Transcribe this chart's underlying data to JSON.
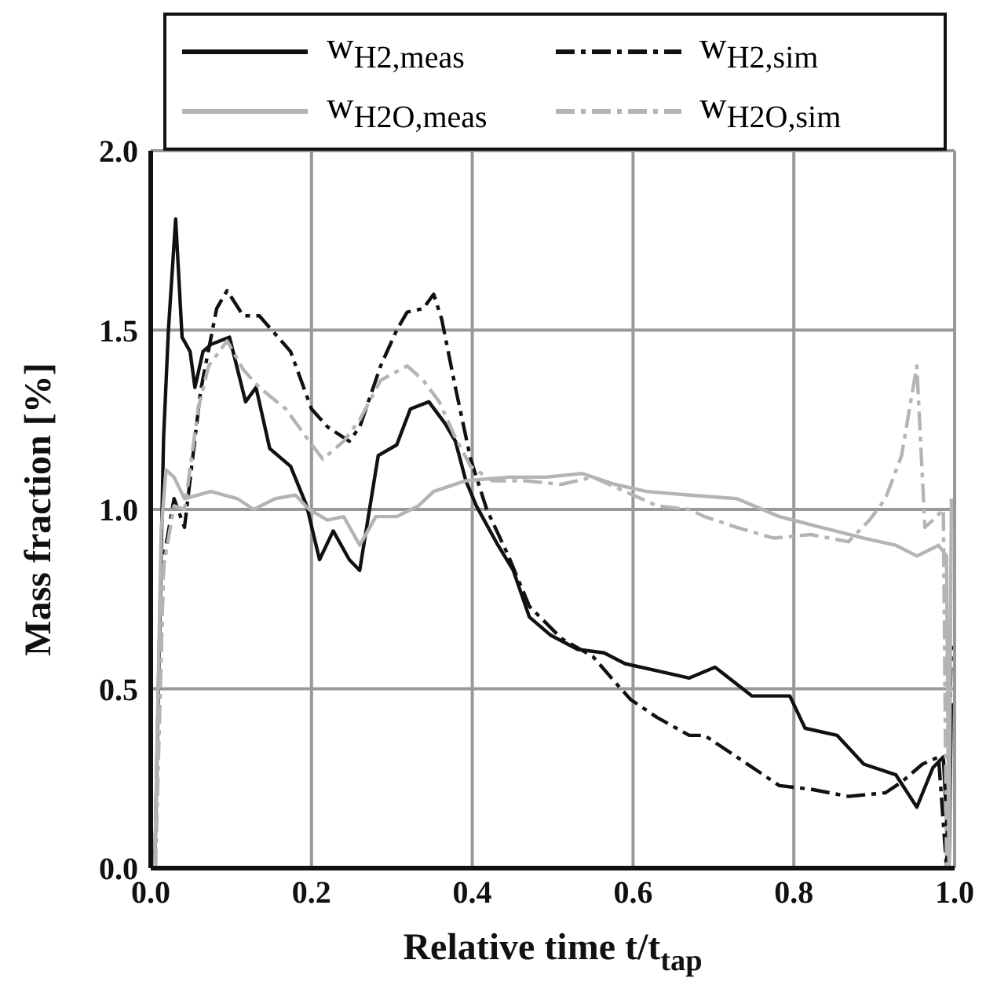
{
  "chart_data": {
    "type": "line",
    "xlabel": "Relative time t/t$_{tap}$",
    "ylabel": "Mass fraction [%]",
    "xlim": [
      0,
      1
    ],
    "ylim": [
      0,
      2
    ],
    "xticks": [
      {
        "value": 0,
        "label": "0.0"
      },
      0.2,
      0.4,
      0.6,
      0.8,
      {
        "value": 1,
        "label": "1.0"
      }
    ],
    "yticks": [
      {
        "value": 0,
        "label": "0.0"
      },
      0.5,
      {
        "value": 1,
        "label": "1.0"
      },
      1.5,
      {
        "value": 2,
        "label": "2.0"
      }
    ],
    "grid": true,
    "legend": "top",
    "marker": "none",
    "series": [
      {
        "name": "w$_{H2,meas}$",
        "color": "#111111",
        "line_style": "solid",
        "x": [
          0.005,
          0.016,
          0.022,
          0.031,
          0.039,
          0.049,
          0.055,
          0.065,
          0.075,
          0.098,
          0.118,
          0.131,
          0.148,
          0.174,
          0.194,
          0.21,
          0.227,
          0.247,
          0.26,
          0.27,
          0.283,
          0.306,
          0.323,
          0.346,
          0.366,
          0.379,
          0.392,
          0.405,
          0.432,
          0.451,
          0.471,
          0.497,
          0.531,
          0.564,
          0.59,
          0.63,
          0.67,
          0.702,
          0.748,
          0.795,
          0.814,
          0.854,
          0.887,
          0.927,
          0.953,
          0.973,
          0.986,
          0.993,
          0.996
        ],
        "values": [
          0,
          1.2,
          1.5,
          1.81,
          1.48,
          1.44,
          1.34,
          1.44,
          1.46,
          1.48,
          1.3,
          1.34,
          1.17,
          1.12,
          1.01,
          0.86,
          0.94,
          0.86,
          0.83,
          0.97,
          1.15,
          1.18,
          1.28,
          1.3,
          1.24,
          1.19,
          1.08,
          1.01,
          0.9,
          0.83,
          0.7,
          0.65,
          0.61,
          0.6,
          0.57,
          0.55,
          0.53,
          0.56,
          0.48,
          0.48,
          0.39,
          0.37,
          0.29,
          0.26,
          0.17,
          0.28,
          0.31,
          0,
          0.46
        ]
      },
      {
        "name": "w$_{H2,sim}$",
        "color": "#111111",
        "line_style": "dashdot",
        "x": [
          0.005,
          0.016,
          0.029,
          0.042,
          0.062,
          0.082,
          0.095,
          0.115,
          0.135,
          0.174,
          0.2,
          0.22,
          0.247,
          0.26,
          0.286,
          0.306,
          0.319,
          0.339,
          0.352,
          0.362,
          0.379,
          0.398,
          0.418,
          0.445,
          0.471,
          0.511,
          0.55,
          0.577,
          0.597,
          0.63,
          0.67,
          0.689,
          0.729,
          0.782,
          0.821,
          0.868,
          0.914,
          0.934,
          0.96,
          0.98,
          0.99,
          0.996
        ],
        "values": [
          0,
          0.86,
          1.03,
          0.95,
          1.33,
          1.56,
          1.61,
          1.54,
          1.54,
          1.44,
          1.28,
          1.23,
          1.19,
          1.23,
          1.4,
          1.5,
          1.55,
          1.56,
          1.6,
          1.53,
          1.34,
          1.14,
          1,
          0.87,
          0.73,
          0.64,
          0.59,
          0.52,
          0.47,
          0.42,
          0.37,
          0.37,
          0.31,
          0.23,
          0.22,
          0.2,
          0.21,
          0.24,
          0.29,
          0.31,
          0,
          0.62
        ]
      },
      {
        "name": "w$_{H2O,meas}$",
        "color": "#b4b4b4",
        "line_style": "solid",
        "x": [
          0.005,
          0.013,
          0.019,
          0.029,
          0.042,
          0.075,
          0.108,
          0.128,
          0.155,
          0.18,
          0.197,
          0.22,
          0.24,
          0.26,
          0.28,
          0.306,
          0.333,
          0.352,
          0.392,
          0.445,
          0.491,
          0.537,
          0.577,
          0.617,
          0.67,
          0.729,
          0.782,
          0.834,
          0.887,
          0.927,
          0.953,
          0.98,
          0.99,
          0.993,
          0.996
        ],
        "values": [
          0,
          0.94,
          1.11,
          1.09,
          1.03,
          1.05,
          1.03,
          1,
          1.03,
          1.04,
          1,
          0.97,
          0.98,
          0.9,
          0.98,
          0.98,
          1.01,
          1.05,
          1.08,
          1.09,
          1.09,
          1.1,
          1.07,
          1.05,
          1.04,
          1.03,
          0.98,
          0.95,
          0.92,
          0.9,
          0.87,
          0.9,
          0.87,
          0,
          1.03
        ]
      },
      {
        "name": "w$_{H2O,sim}$",
        "color": "#b4b4b4",
        "line_style": "dashdot",
        "x": [
          0.006,
          0.016,
          0.029,
          0.042,
          0.059,
          0.072,
          0.095,
          0.115,
          0.135,
          0.168,
          0.194,
          0.214,
          0.24,
          0.26,
          0.286,
          0.319,
          0.339,
          0.359,
          0.379,
          0.398,
          0.425,
          0.465,
          0.511,
          0.55,
          0.59,
          0.63,
          0.67,
          0.689,
          0.729,
          0.775,
          0.821,
          0.868,
          0.894,
          0.914,
          0.934,
          0.953,
          0.963,
          0.973,
          0.986,
          0.99
        ],
        "values": [
          0,
          0.84,
          1.01,
          1,
          1.28,
          1.4,
          1.47,
          1.39,
          1.34,
          1.28,
          1.2,
          1.14,
          1.19,
          1.25,
          1.36,
          1.4,
          1.36,
          1.3,
          1.2,
          1.12,
          1.08,
          1.08,
          1.07,
          1.09,
          1.05,
          1.01,
          1,
          0.98,
          0.95,
          0.92,
          0.93,
          0.91,
          0.97,
          1.03,
          1.15,
          1.4,
          0.95,
          0.97,
          1,
          0
        ]
      }
    ]
  }
}
